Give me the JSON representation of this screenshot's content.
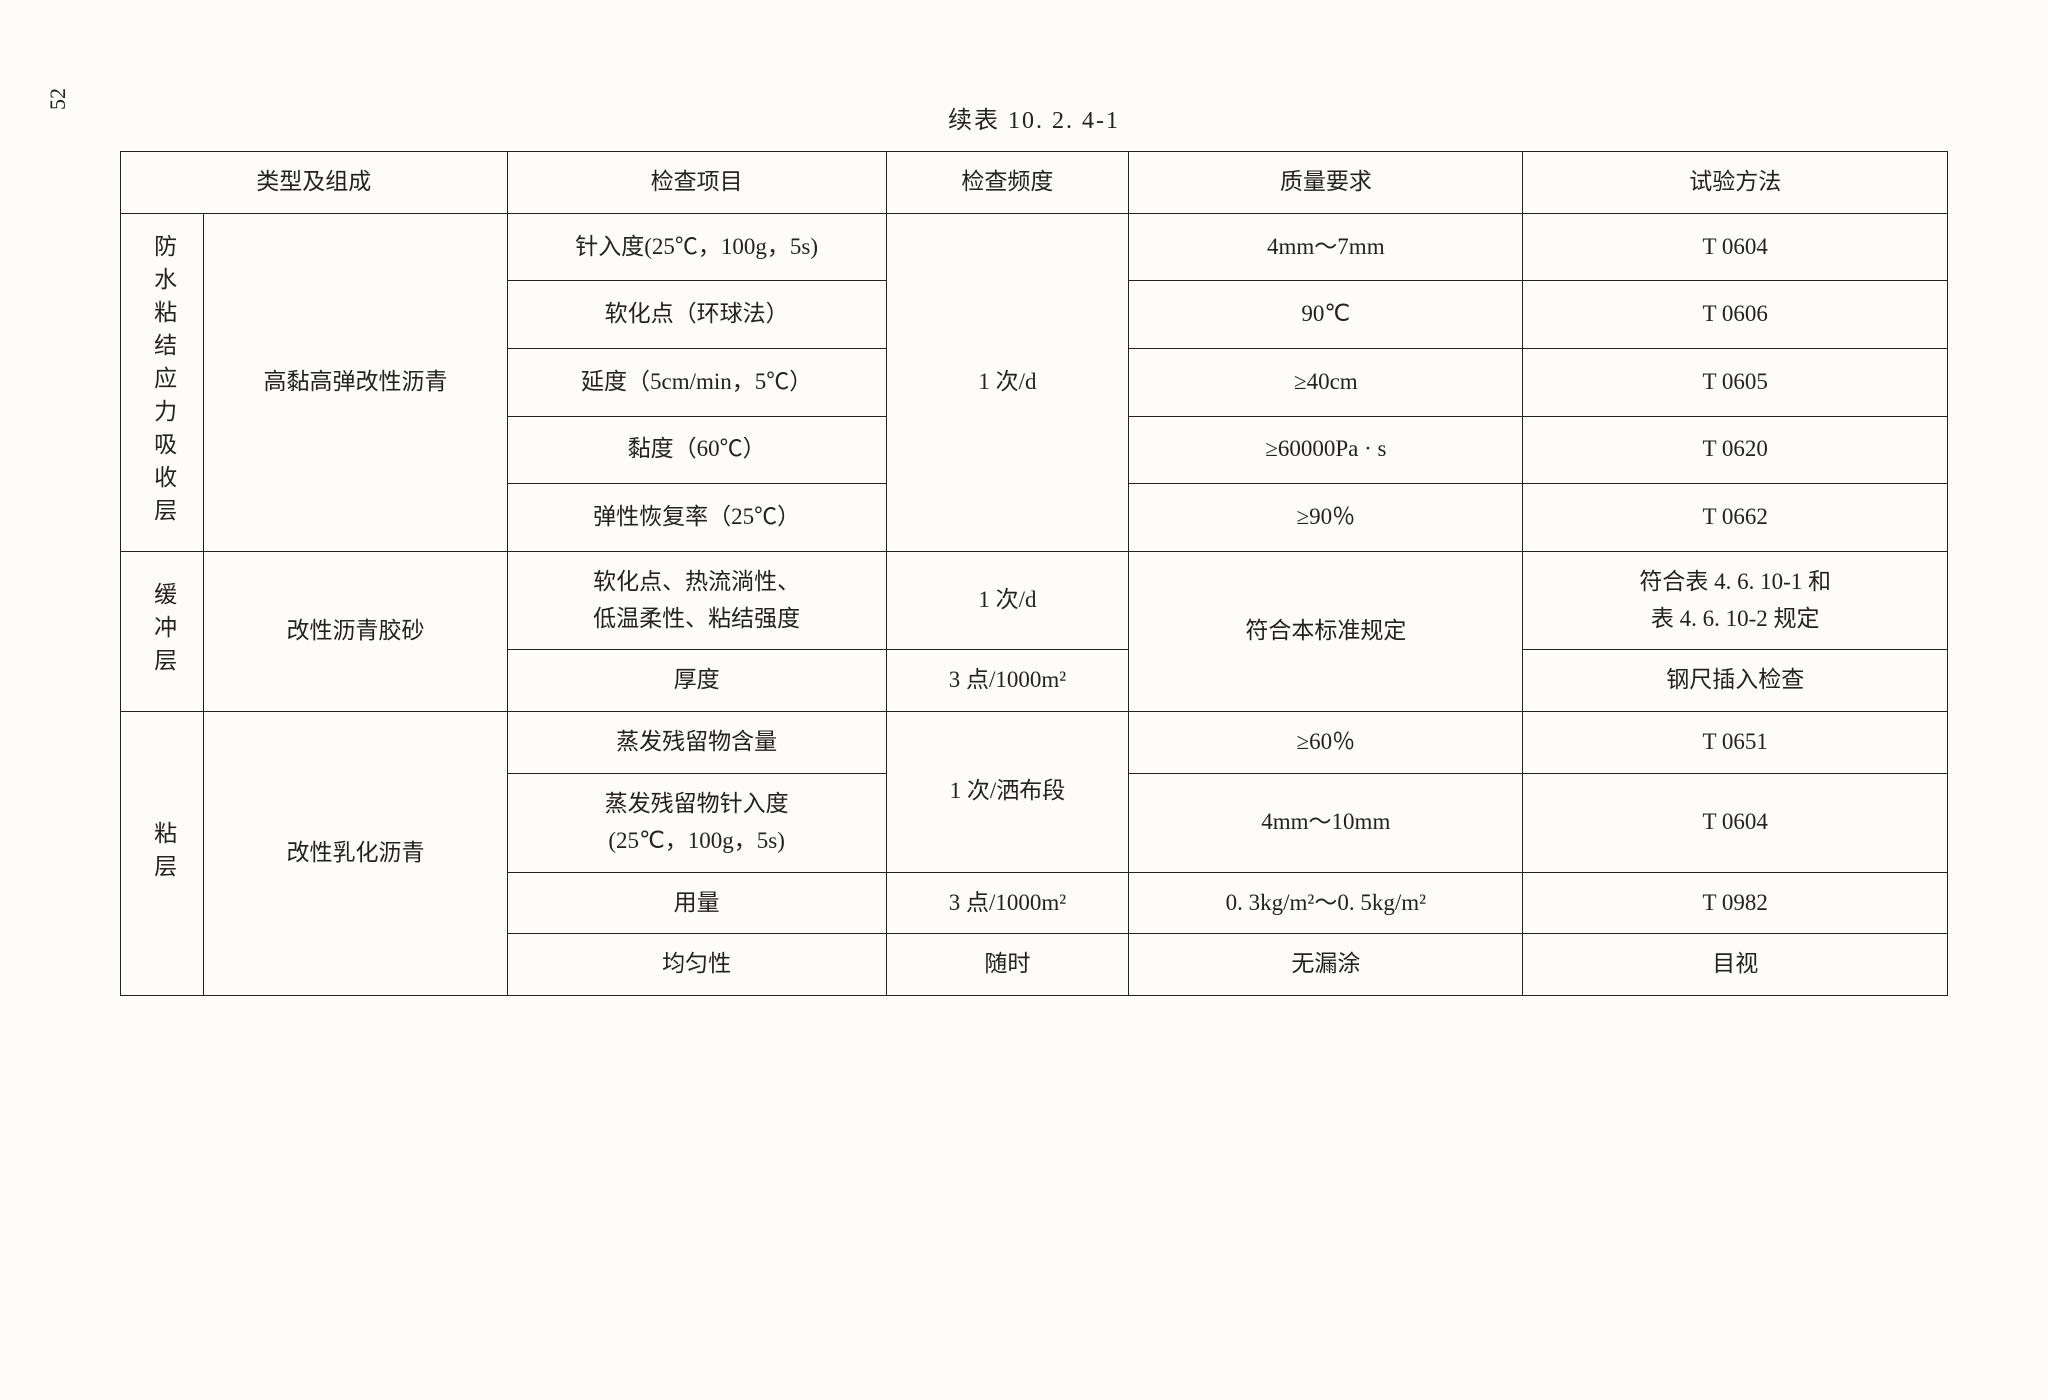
{
  "page_number": "52",
  "title": "续表 10. 2. 4-1",
  "headers": {
    "type_composition": "类型及组成",
    "check_item": "检查项目",
    "frequency": "检查频度",
    "quality": "质量要求",
    "method": "试验方法"
  },
  "section1": {
    "group_label": "防水粘结应力吸收层",
    "composition": "高黏高弹改性沥青",
    "rows": [
      {
        "check_item": "针入度(25℃，100g，5s)",
        "quality": "4mm～7mm",
        "method": "T 0604"
      },
      {
        "check_item": "软化点（环球法）",
        "quality": "90℃",
        "method": "T 0606"
      },
      {
        "check_item": "延度（5cm/min，5℃）",
        "quality": "≥40cm",
        "method": "T 0605"
      },
      {
        "check_item": "黏度（60℃）",
        "quality": "≥60000Pa · s",
        "method": "T 0620"
      },
      {
        "check_item": "弹性恢复率（25℃）",
        "quality": "≥90％",
        "method": "T 0662"
      }
    ],
    "frequency": "1 次/d"
  },
  "section2": {
    "group_label": "缓冲层",
    "composition": "改性沥青胶砂",
    "rows": [
      {
        "check_item": "软化点、热流淌性、\n低温柔性、粘结强度",
        "frequency": "1 次/d",
        "method": "符合表 4. 6. 10-1 和\n表 4. 6. 10-2 规定"
      },
      {
        "check_item": "厚度",
        "frequency": "3 点/1000m²",
        "method": "钢尺插入检查"
      }
    ],
    "quality": "符合本标准规定"
  },
  "section3": {
    "group_label": "粘层",
    "composition": "改性乳化沥青",
    "rows": [
      {
        "check_item": "蒸发残留物含量",
        "quality": "≥60％",
        "method": "T 0651"
      },
      {
        "check_item": "蒸发残留物针入度\n(25℃，100g，5s)",
        "quality": "4mm～10mm",
        "method": "T 0604"
      },
      {
        "check_item": "用量",
        "frequency": "3 点/1000m²",
        "quality": "0. 3kg/m²～0. 5kg/m²",
        "method": "T 0982"
      },
      {
        "check_item": "均匀性",
        "frequency": "随时",
        "quality": "无漏涂",
        "method": "目视"
      }
    ],
    "frequency_merged": "1 次/洒布段"
  },
  "styling": {
    "background_color": "#fdfcf9",
    "border_color": "#222222",
    "text_color": "#222222",
    "font_family": "SimSun, 宋体, serif",
    "title_fontsize": 24,
    "cell_fontsize": 23,
    "page_number_fontsize": 22,
    "border_width": 1.5,
    "column_widths": {
      "type_group": 55,
      "composition": 200,
      "check_item": 250,
      "frequency": 160,
      "quality": 260,
      "method": 280
    }
  }
}
